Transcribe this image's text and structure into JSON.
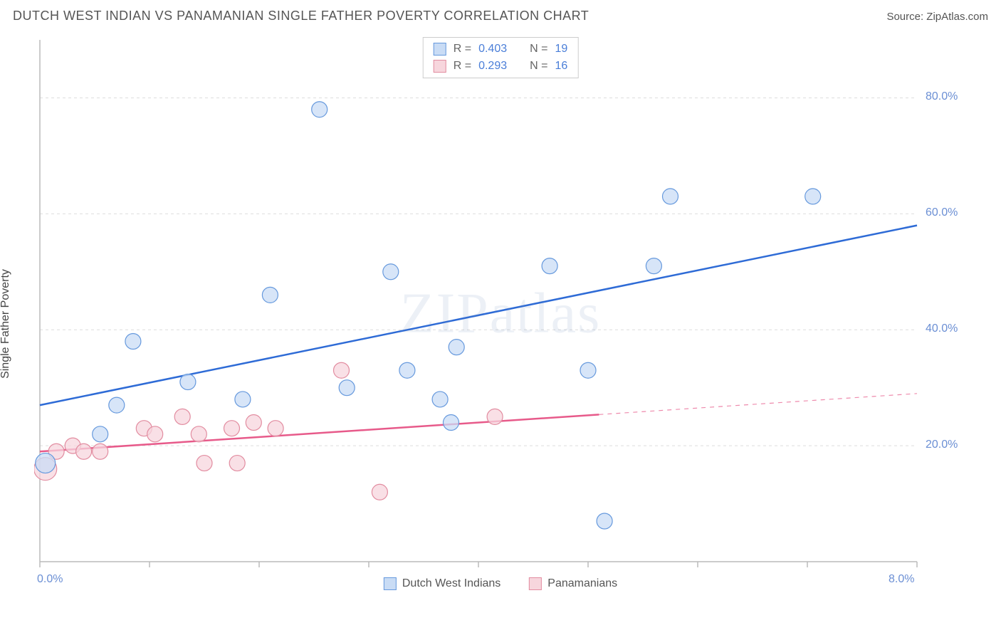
{
  "title": "DUTCH WEST INDIAN VS PANAMANIAN SINGLE FATHER POVERTY CORRELATION CHART",
  "source_label": "Source: ZipAtlas.com",
  "ylabel": "Single Father Poverty",
  "watermark": "ZIPatlas",
  "chart": {
    "type": "scatter",
    "xlim": [
      0,
      8
    ],
    "ylim": [
      0,
      90
    ],
    "x_ticks": [
      0,
      1,
      2,
      3,
      4,
      5,
      6,
      7,
      8
    ],
    "x_tick_labels_shown": {
      "0": "0.0%",
      "8": "8.0%"
    },
    "y_gridlines": [
      20,
      40,
      60,
      80
    ],
    "y_tick_labels": {
      "20": "20.0%",
      "40": "40.0%",
      "60": "60.0%",
      "80": "80.0%"
    },
    "background_color": "#ffffff",
    "grid_color": "#dddddd",
    "axis_color": "#bbbbbb",
    "tick_label_color": "#6b8fd4",
    "marker_radius": 11,
    "marker_stroke_width": 1.2,
    "trend_line_width": 2.5,
    "series": [
      {
        "name": "Dutch West Indians",
        "legend_label": "Dutch West Indians",
        "fill": "#c9dcf5",
        "stroke": "#6699dd",
        "line_color": "#2e6bd6",
        "R": "0.403",
        "N": "19",
        "trend": {
          "x1": 0,
          "y1": 27,
          "x2": 8,
          "y2": 58,
          "dashed_from": null
        },
        "points": [
          {
            "x": 0.05,
            "y": 17,
            "r": 14
          },
          {
            "x": 0.55,
            "y": 22
          },
          {
            "x": 0.7,
            "y": 27
          },
          {
            "x": 0.85,
            "y": 38
          },
          {
            "x": 1.35,
            "y": 31
          },
          {
            "x": 1.85,
            "y": 28
          },
          {
            "x": 2.1,
            "y": 46
          },
          {
            "x": 2.55,
            "y": 78
          },
          {
            "x": 2.8,
            "y": 30
          },
          {
            "x": 3.2,
            "y": 50
          },
          {
            "x": 3.35,
            "y": 33
          },
          {
            "x": 3.65,
            "y": 28
          },
          {
            "x": 3.75,
            "y": 24
          },
          {
            "x": 3.8,
            "y": 37
          },
          {
            "x": 4.65,
            "y": 51
          },
          {
            "x": 5.0,
            "y": 33
          },
          {
            "x": 5.15,
            "y": 7
          },
          {
            "x": 5.6,
            "y": 51
          },
          {
            "x": 5.75,
            "y": 63
          },
          {
            "x": 7.05,
            "y": 63
          }
        ]
      },
      {
        "name": "Panamanians",
        "legend_label": "Panamanians",
        "fill": "#f7d6dd",
        "stroke": "#e28ca0",
        "line_color": "#e75a8a",
        "R": "0.293",
        "N": "16",
        "trend": {
          "x1": 0,
          "y1": 19,
          "x2": 8,
          "y2": 29,
          "dashed_from": 5.1
        },
        "points": [
          {
            "x": 0.05,
            "y": 16,
            "r": 16
          },
          {
            "x": 0.15,
            "y": 19
          },
          {
            "x": 0.3,
            "y": 20
          },
          {
            "x": 0.4,
            "y": 19
          },
          {
            "x": 0.55,
            "y": 19
          },
          {
            "x": 0.95,
            "y": 23
          },
          {
            "x": 1.05,
            "y": 22
          },
          {
            "x": 1.3,
            "y": 25
          },
          {
            "x": 1.45,
            "y": 22
          },
          {
            "x": 1.5,
            "y": 17
          },
          {
            "x": 1.75,
            "y": 23
          },
          {
            "x": 1.8,
            "y": 17
          },
          {
            "x": 1.95,
            "y": 24
          },
          {
            "x": 2.15,
            "y": 23
          },
          {
            "x": 2.75,
            "y": 33
          },
          {
            "x": 3.1,
            "y": 12
          },
          {
            "x": 4.15,
            "y": 25
          }
        ]
      }
    ]
  }
}
